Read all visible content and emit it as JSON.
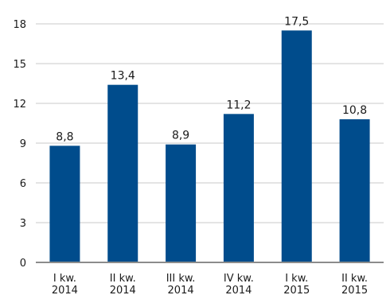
{
  "chart_data": {
    "type": "bar",
    "categories": [
      [
        "I kw.",
        "2014"
      ],
      [
        "II kw.",
        "2014"
      ],
      [
        "III kw.",
        "2014"
      ],
      [
        "IV kw.",
        "2014"
      ],
      [
        "I kw.",
        "2015"
      ],
      [
        "II kw.",
        "2015"
      ]
    ],
    "values": [
      8.8,
      13.4,
      8.9,
      11.2,
      17.5,
      10.8
    ],
    "value_labels": [
      "8,8",
      "13,4",
      "8,9",
      "11,2",
      "17,5",
      "10,8"
    ],
    "yticks": [
      0,
      3,
      6,
      9,
      12,
      15,
      18
    ],
    "ylim": [
      0,
      18
    ],
    "grid": true,
    "legend": "none",
    "colors": {
      "bar": "#004c8c",
      "grid": "#c8c8c8",
      "axis": "#8c8c8c"
    }
  }
}
